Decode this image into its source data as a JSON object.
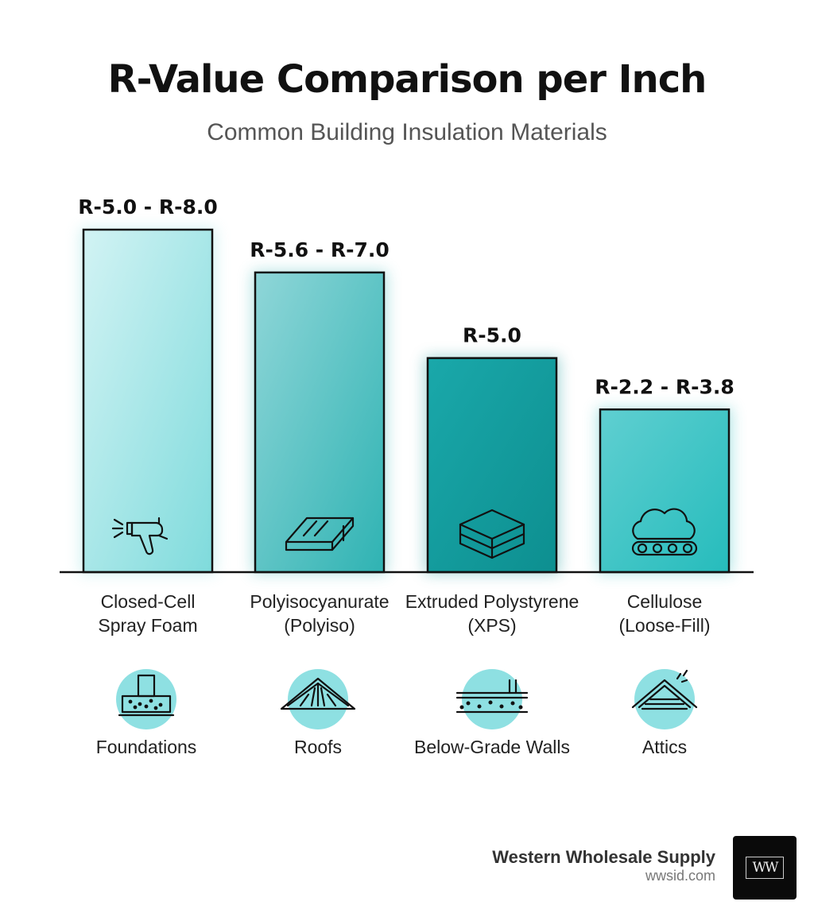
{
  "title": "R-Value Comparison per Inch",
  "subtitle": "Common Building Insulation Materials",
  "chart_data": {
    "type": "bar",
    "categories": [
      [
        "Closed-Cell",
        "Spray Foam"
      ],
      [
        "Polyisocyanurate",
        "(Polyiso)"
      ],
      [
        "Extruded Polystyrene",
        "(XPS)"
      ],
      [
        "Cellulose",
        "(Loose-Fill)"
      ]
    ],
    "values": [
      8.0,
      7.0,
      5.0,
      3.8
    ],
    "ranges": [
      [
        5.0,
        8.0
      ],
      [
        5.6,
        7.0
      ],
      [
        5.0,
        5.0
      ],
      [
        2.2,
        3.8
      ]
    ],
    "value_labels": [
      "R-5.0 - R-8.0",
      "R-5.6 - R-7.0",
      "R-5.0",
      "R-2.2 - R-3.8"
    ],
    "bar_icons": [
      "spray-gun-icon",
      "rigid-board-icon",
      "stacked-boards-icon",
      "cellulose-cloud-icon"
    ],
    "bar_colors": [
      [
        "#d2f3f4",
        "#7fdbdc"
      ],
      [
        "#8fd6d8",
        "#2fb3b3"
      ],
      [
        "#1aa8aa",
        "#0d8f90"
      ],
      [
        "#5fcfd1",
        "#26bcbc"
      ]
    ],
    "applications": [
      {
        "label": "Foundations",
        "icon": "foundation-icon"
      },
      {
        "label": "Roofs",
        "icon": "roof-truss-icon"
      },
      {
        "label": "Below-Grade Walls",
        "icon": "below-grade-wall-icon"
      },
      {
        "label": "Attics",
        "icon": "attic-icon"
      }
    ],
    "ylim": [
      0,
      8
    ],
    "legend": "none",
    "grid": false
  },
  "brand": {
    "name": "Western Wholesale Supply",
    "url": "wwsid.com",
    "logo_text": "WW"
  },
  "colors": {
    "app_circle": "#8ee0e2",
    "outline": "#111111"
  }
}
